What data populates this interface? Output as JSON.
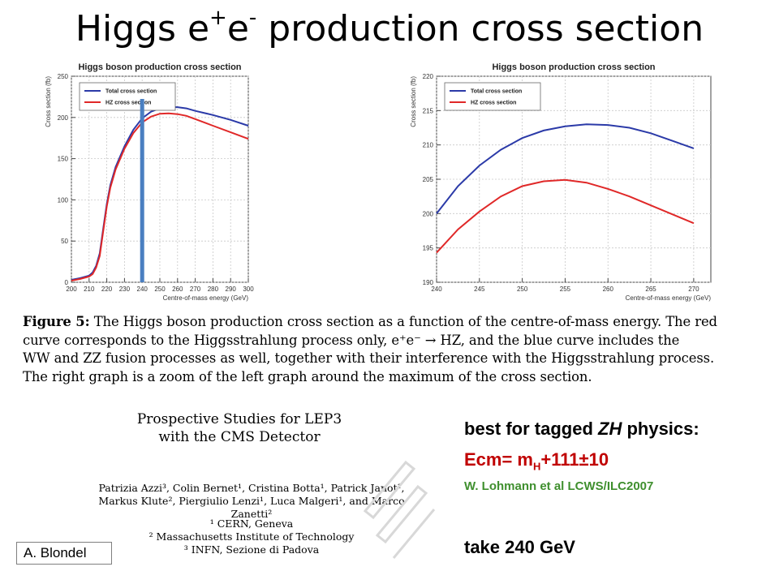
{
  "slide": {
    "title_prefix": "Higgs e",
    "title_sup1": "+",
    "title_mid": "e",
    "title_sup2": "-",
    "title_suffix": " production cross section"
  },
  "chart_data": [
    {
      "type": "line",
      "title": "Higgs boson production cross section",
      "xlabel": "Centre-of-mass energy (GeV)",
      "ylabel": "Cross section (fb)",
      "xlim": [
        200,
        300
      ],
      "ylim": [
        0,
        250
      ],
      "x_ticks": [
        200,
        210,
        220,
        230,
        240,
        250,
        260,
        270,
        280,
        290,
        300
      ],
      "y_ticks": [
        0,
        50,
        100,
        150,
        200,
        250
      ],
      "grid": true,
      "legend_position": "top-left",
      "series": [
        {
          "name": "Total cross section",
          "color": "#2b3aa8",
          "x": [
            200,
            205,
            210,
            212,
            214,
            216,
            218,
            220,
            222,
            225,
            230,
            235,
            240,
            245,
            250,
            255,
            260,
            265,
            270,
            280,
            290,
            300
          ],
          "y": [
            3,
            5,
            8,
            12,
            20,
            35,
            65,
            95,
            118,
            140,
            165,
            185,
            199,
            207,
            211,
            212.5,
            212.5,
            211,
            208,
            203,
            197,
            190
          ]
        },
        {
          "name": "HZ cross section",
          "color": "#e02828",
          "x": [
            200,
            205,
            210,
            212,
            214,
            216,
            218,
            220,
            222,
            225,
            230,
            235,
            240,
            245,
            250,
            255,
            260,
            265,
            270,
            280,
            290,
            300
          ],
          "y": [
            2,
            4,
            7,
            10,
            18,
            32,
            62,
            92,
            115,
            137,
            162,
            181,
            194,
            201,
            204.5,
            205,
            204,
            202,
            198,
            190,
            182,
            174
          ]
        }
      ],
      "marker_line": {
        "x": 240,
        "color": "#4a7fc1"
      }
    },
    {
      "type": "line",
      "title": "Higgs boson production cross section",
      "xlabel": "Centre-of-mass energy (GeV)",
      "ylabel": "Cross section (fb)",
      "xlim": [
        240,
        272
      ],
      "ylim": [
        190,
        220
      ],
      "x_ticks": [
        240,
        245,
        250,
        255,
        260,
        265,
        270
      ],
      "y_ticks": [
        190,
        195,
        200,
        205,
        210,
        215,
        220
      ],
      "grid": true,
      "legend_position": "top-left",
      "series": [
        {
          "name": "Total cross section",
          "color": "#2b3aa8",
          "x": [
            240,
            242.5,
            245,
            247.5,
            250,
            252.5,
            255,
            257.5,
            260,
            262.5,
            265,
            267.5,
            270
          ],
          "y": [
            200,
            204,
            207,
            209.3,
            211,
            212.1,
            212.7,
            213,
            212.9,
            212.5,
            211.7,
            210.6,
            209.5
          ]
        },
        {
          "name": "HZ cross section",
          "color": "#e02828",
          "x": [
            240,
            242.5,
            245,
            247.5,
            250,
            252.5,
            255,
            257.5,
            260,
            262.5,
            265,
            267.5,
            270
          ],
          "y": [
            194.3,
            197.7,
            200.3,
            202.5,
            204,
            204.7,
            204.9,
            204.5,
            203.6,
            202.5,
            201.2,
            199.9,
            198.6
          ]
        }
      ]
    }
  ],
  "caption": {
    "lead": "Figure 5:",
    "line1": " The Higgs boson production cross section as a function of the centre-of-mass energy. The red",
    "line2": "curve corresponds to the Higgsstrahlung process only, e⁺e⁻ → HZ, and the blue curve includes the",
    "line3": "WW and ZZ fusion processes as well, together with their interference with the Higgsstrahlung process.",
    "line4": "The right graph is a zoom of the left graph around the maximum of the cross section."
  },
  "paper": {
    "title_line1": "Prospective Studies for LEP3",
    "title_line2": "with the CMS Detector",
    "authors_line1": "Patrizia Azzi³, Colin Bernet¹, Cristina Botta¹, Patrick Janot¹,",
    "authors_line2": "Markus Klute², Piergiulio Lenzi¹, Luca Malgeri¹, and Marco Zanetti²",
    "affil_line1": "¹ CERN, Geneva",
    "affil_line2": "² Massachusetts Institute of Technology",
    "affil_line3": "³ INFN, Sezione di Padova"
  },
  "note": {
    "heading_pre": "best for tagged ",
    "heading_em": "ZH",
    "heading_post": " physics:",
    "formula_pre": "Ecm= m",
    "formula_sub": "H",
    "formula_post": "+111±10",
    "reference": "W. Lohmann et al LCWS/ILC2007",
    "take": "take 240 GeV",
    "formula_color": "#c00000",
    "reference_color": "#3f8f2e"
  },
  "footer": {
    "author": "A. Blondel"
  }
}
